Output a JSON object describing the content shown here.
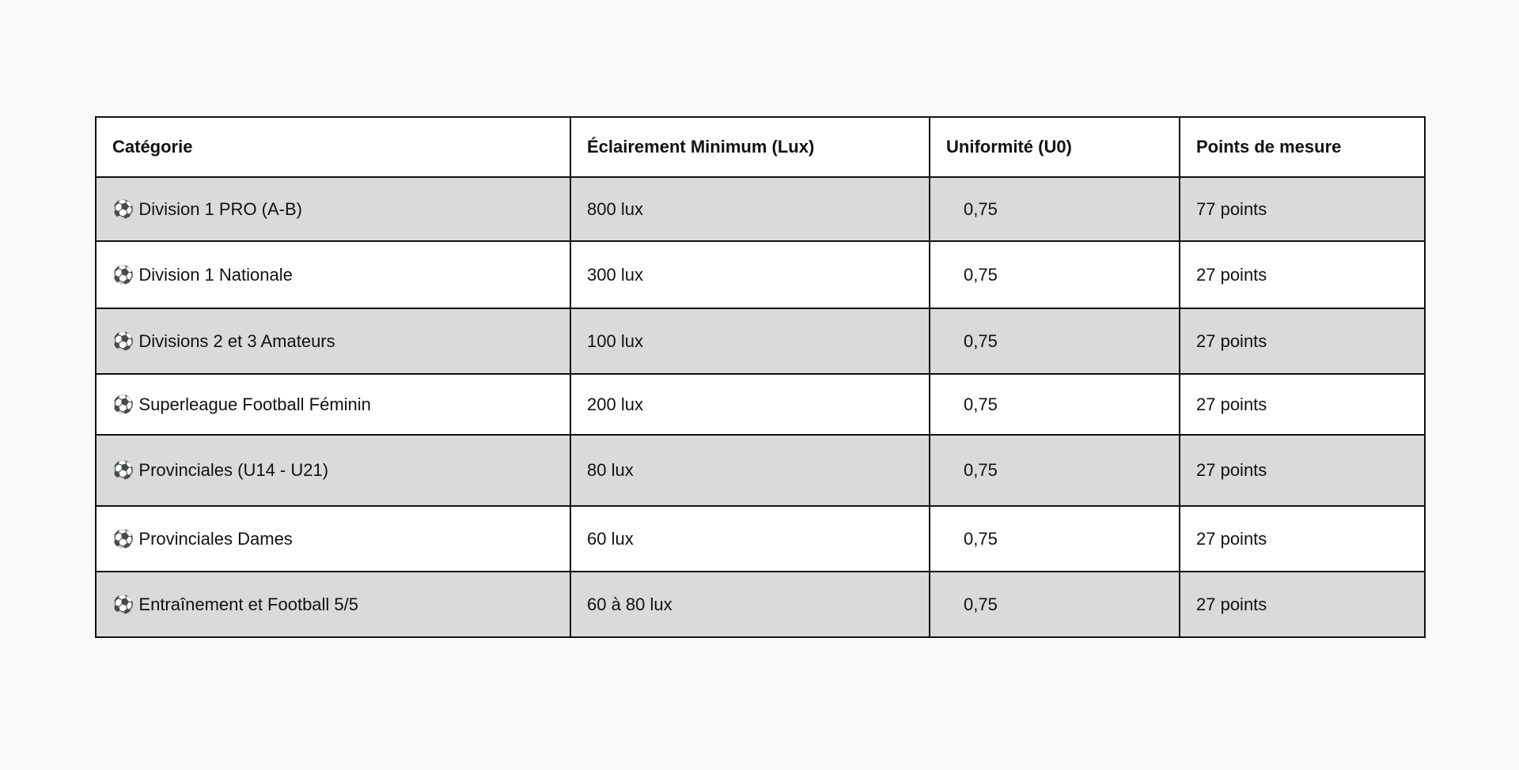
{
  "table": {
    "headers": [
      "Catégorie",
      "Éclairement Minimum (Lux)",
      "Uniformité (U0)",
      "Points de mesure"
    ],
    "rows": [
      {
        "icon": "soccer-ball-icon",
        "category": "Division 1 PRO (A-B)",
        "lux": "800 lux",
        "uniformity": "0,75",
        "points": "77 points"
      },
      {
        "icon": "soccer-ball-icon",
        "category": "Division 1 Nationale",
        "lux": "300 lux",
        "uniformity": "0,75",
        "points": "27 points"
      },
      {
        "icon": "soccer-ball-icon",
        "category": "Divisions 2 et 3 Amateurs",
        "lux": "100 lux",
        "uniformity": "0,75",
        "points": "27 points"
      },
      {
        "icon": "soccer-ball-icon",
        "category": "Superleague Football Féminin",
        "lux": "200 lux",
        "uniformity": "0,75",
        "points": "27 points"
      },
      {
        "icon": "soccer-ball-icon",
        "category": "Provinciales (U14 - U21)",
        "lux": "80 lux",
        "uniformity": "0,75",
        "points": "27 points"
      },
      {
        "icon": "soccer-ball-icon",
        "category": "Provinciales Dames",
        "lux": "60 lux",
        "uniformity": "0,75",
        "points": "27 points"
      },
      {
        "icon": "soccer-ball-icon",
        "category": "Entraînement et Football 5/5",
        "lux": "60 à 80 lux",
        "uniformity": "0,75",
        "points": "27 points"
      }
    ]
  },
  "colors": {
    "page_background": "#f8f9fb",
    "shaded_row": "#dadada",
    "plain_row": "#ffffff",
    "border": "#111111",
    "text": "#111111"
  }
}
